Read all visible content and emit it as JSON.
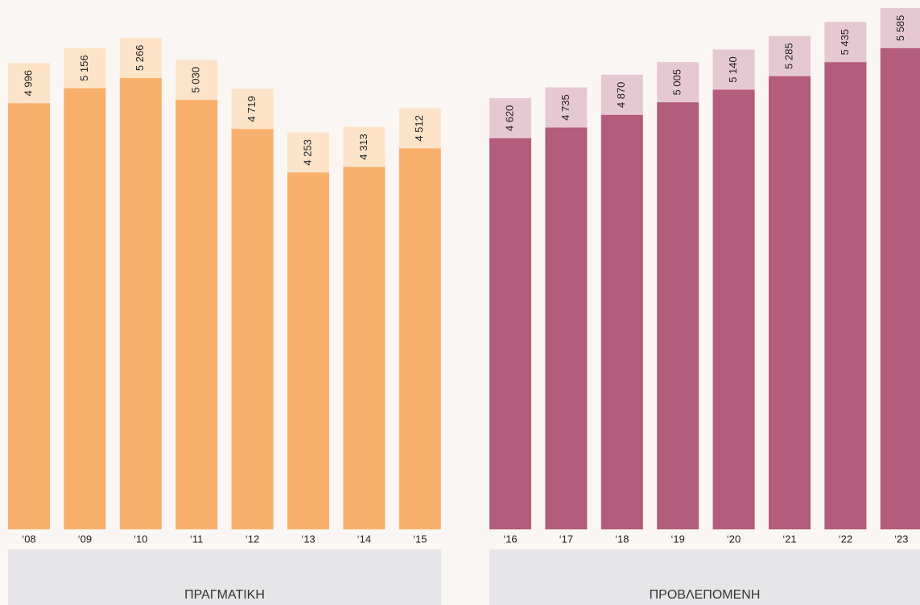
{
  "chart_data": [
    {
      "type": "bar",
      "title": "ΠΡΑΓΜΑΤΙΚΗ",
      "categories": [
        "‘08",
        "‘09",
        "‘10",
        "‘11",
        "‘12",
        "‘13",
        "‘14",
        "‘15"
      ],
      "values": [
        4996,
        5156,
        5266,
        5030,
        4719,
        4253,
        4313,
        4512
      ],
      "value_labels": [
        "4 996",
        "5 156",
        "5 266",
        "5 030",
        "4 719",
        "4 253",
        "4 313",
        "4 512"
      ],
      "color": "#f9b06c",
      "cap_color": "#fde4c9",
      "ylim": [
        0,
        5670
      ]
    },
    {
      "type": "bar",
      "title": "ΠΡΟΒΛΕΠΟΜΕΝΗ",
      "categories": [
        "‘16",
        "‘17",
        "‘18",
        "‘19",
        "‘20",
        "‘21",
        "‘22",
        "‘23"
      ],
      "values": [
        4620,
        4735,
        4870,
        5005,
        5140,
        5285,
        5435,
        5585
      ],
      "value_labels": [
        "4 620",
        "4 735",
        "4 870",
        "5 005",
        "5 140",
        "5 285",
        "5 435",
        "5 585"
      ],
      "color": "#b35c7b",
      "cap_color": "#e6c8d2",
      "ylim": [
        0,
        5670
      ]
    }
  ]
}
